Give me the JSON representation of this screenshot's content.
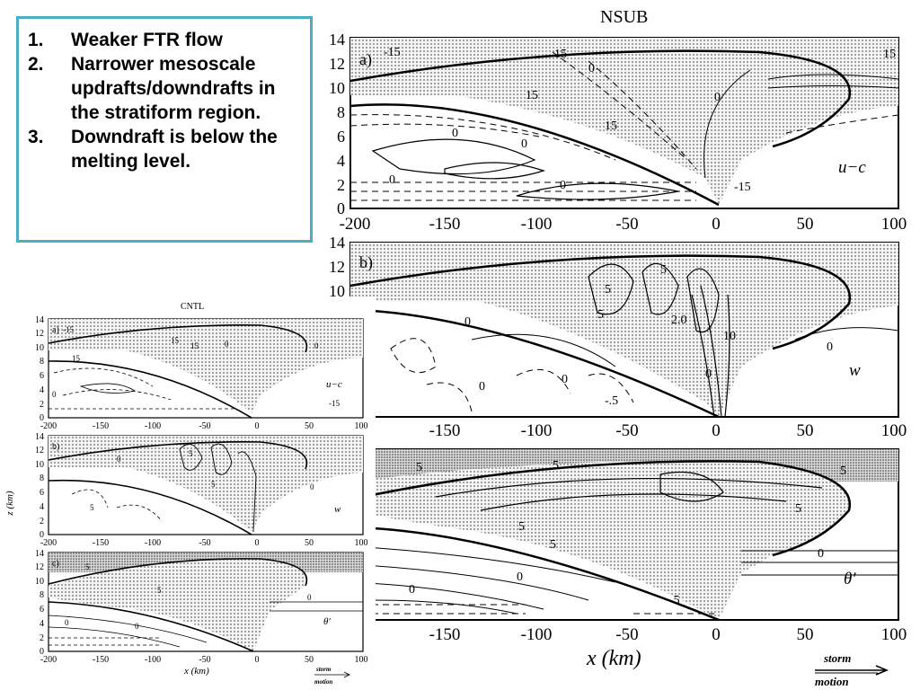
{
  "callout": {
    "items": [
      {
        "num": "1.",
        "text": "Weaker FTR flow"
      },
      {
        "num": "2.",
        "text": "Narrower mesoscale updrafts/downdrafts in the stratiform region."
      },
      {
        "num": "3.",
        "text": "Downdraft is below the melting level."
      }
    ]
  },
  "nsub": {
    "title": "NSUB",
    "panels": [
      {
        "tag": "a)",
        "var": "u−c",
        "labels": [
          "-15",
          "15",
          "0",
          "15",
          "15",
          "0",
          "15",
          "0",
          "0",
          "0",
          "0",
          "-15"
        ]
      },
      {
        "tag": "b)",
        "var": "w",
        "labels": [
          "5",
          "5",
          "2.0",
          "10",
          "5",
          "0",
          "0",
          "0",
          "-.5",
          "0",
          "0"
        ]
      },
      {
        "tag": "c)",
        "var": "θ′",
        "labels": [
          "5",
          "5",
          "5",
          "5",
          "5",
          "5",
          "0",
          "0",
          "0",
          "-5"
        ]
      }
    ],
    "y_ticks": [
      "0",
      "2",
      "4",
      "6",
      "8",
      "10",
      "12",
      "14"
    ],
    "x_ticks": [
      "-200",
      "-150",
      "-100",
      "-50",
      "0",
      "50",
      "100"
    ],
    "x_label": "x  (km)"
  },
  "cntl": {
    "title": "CNTL",
    "panels": [
      {
        "tag": "a)",
        "var": "u−c",
        "labels": [
          "-15",
          "15",
          "15",
          "0",
          "0",
          "-15",
          "15",
          "0"
        ]
      },
      {
        "tag": "b)",
        "var": "w",
        "labels": [
          "0",
          "5",
          "5",
          "5",
          "0"
        ]
      },
      {
        "tag": "c)",
        "var": "θ′",
        "labels": [
          "5",
          "5",
          "0",
          "0",
          "0"
        ]
      }
    ],
    "y_ticks": [
      "0",
      "2",
      "4",
      "6",
      "8",
      "10",
      "12",
      "14"
    ],
    "x_ticks": [
      "-200",
      "-150",
      "-100",
      "-50",
      "0",
      "50",
      "100"
    ],
    "x_label": "x (km)",
    "z_label": "z (km)"
  },
  "storm_motion": {
    "line1": "storm",
    "line2": "motion"
  }
}
